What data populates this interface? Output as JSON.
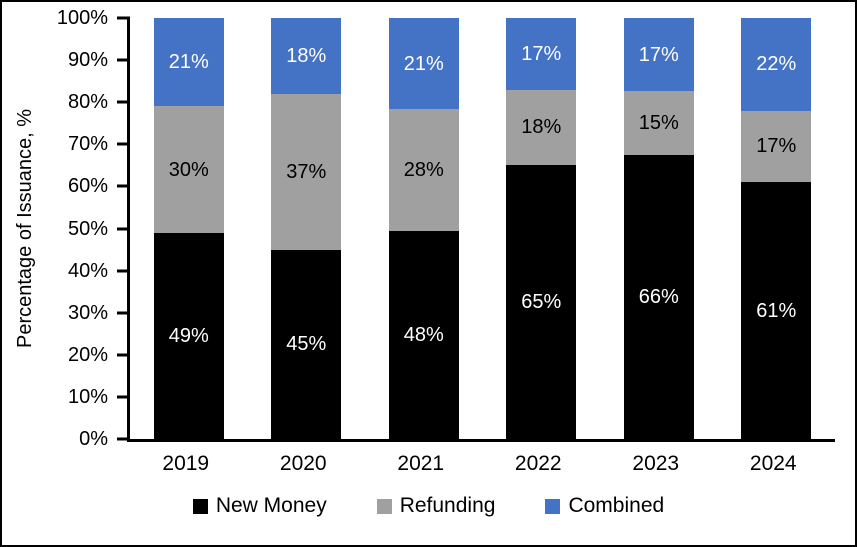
{
  "chart_data": {
    "type": "bar",
    "stacked": true,
    "title": "",
    "ylabel": "Percentage of Issuance, %",
    "xlabel": "",
    "ylim": [
      0,
      100
    ],
    "y_tick_labels": [
      "0%",
      "10%",
      "20%",
      "30%",
      "40%",
      "50%",
      "60%",
      "70%",
      "80%",
      "90%",
      "100%"
    ],
    "grid": false,
    "legend_position": "bottom",
    "value_suffix": "%",
    "categories": [
      "2019",
      "2020",
      "2021",
      "2022",
      "2023",
      "2024"
    ],
    "series": [
      {
        "name": "New Money",
        "color": "#000000",
        "label_color": "#ffffff",
        "values": [
          49,
          45,
          48,
          65,
          66,
          61
        ]
      },
      {
        "name": "Refunding",
        "color": "#A0A0A0",
        "label_color": "#000000",
        "values": [
          30,
          37,
          28,
          18,
          15,
          17
        ]
      },
      {
        "name": "Combined",
        "color": "#4472C4",
        "label_color": "#ffffff",
        "values": [
          21,
          18,
          21,
          17,
          17,
          22
        ]
      }
    ]
  }
}
